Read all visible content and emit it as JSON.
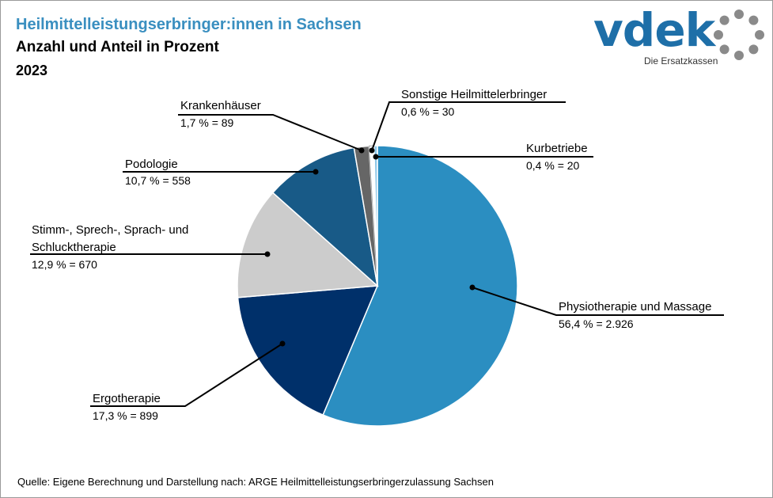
{
  "header": {
    "title": "Heilmittelleistungserbringer:innen in Sachsen",
    "subtitle": "Anzahl und Anteil in Prozent",
    "year": "2023"
  },
  "logo": {
    "name": "vdek",
    "tagline": "Die Ersatzkassen",
    "icon": "ring-of-dots-icon"
  },
  "source": "Quelle: Eigene Berechnung und Darstellung nach: ARGE Heilmittelleistungserbringerzulassung  Sachsen",
  "chart_data": {
    "type": "pie",
    "title": "Heilmittelleistungserbringer:innen in Sachsen",
    "slices": [
      {
        "label": "Physiotherapie und Massage",
        "value": 2926,
        "percent": 56.4,
        "value_label": "56,4 % = 2.926",
        "color": "#2b8ec1"
      },
      {
        "label": "Ergotherapie",
        "value": 899,
        "percent": 17.3,
        "value_label": "17,3 % = 899",
        "color": "#00306a"
      },
      {
        "label": "Stimm-, Sprech-, Sprach- und Schlucktherapie",
        "label_lines": [
          "Stimm-, Sprech-, Sprach- und",
          "Schlucktherapie"
        ],
        "value": 670,
        "percent": 12.9,
        "value_label": "12,9 % = 670",
        "color": "#cccccc"
      },
      {
        "label": "Podologie",
        "value": 558,
        "percent": 10.7,
        "value_label": "10,7 % = 558",
        "color": "#185a87"
      },
      {
        "label": "Krankenhäuser",
        "value": 89,
        "percent": 1.7,
        "value_label": "1,7 % = 89",
        "color": "#666666"
      },
      {
        "label": "Sonstige Heilmittelerbringer",
        "value": 30,
        "percent": 0.6,
        "value_label": "0,6 % = 30",
        "color": "#ffffff"
      },
      {
        "label": "Kurbetriebe",
        "value": 20,
        "percent": 0.4,
        "value_label": "0,4 % = 20",
        "color": "#8fc8e8"
      }
    ]
  }
}
